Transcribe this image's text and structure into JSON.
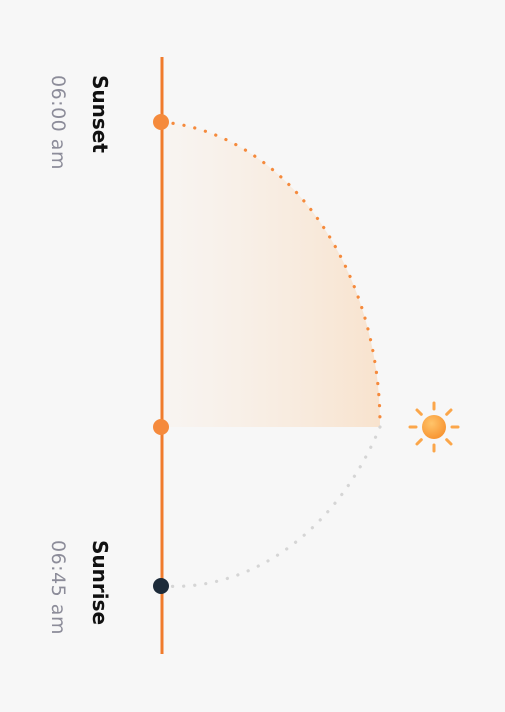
{
  "sunset": {
    "label": "Sunset",
    "time": "06:00 am"
  },
  "sunrise": {
    "label": "Sunrise",
    "time": "06:45 am"
  },
  "colors": {
    "accent": "#f58a3c",
    "track": "#f07b2c",
    "sun": "#fba64a",
    "sunrise_marker": "#1d2b3a",
    "remaining_path": "#d5d5d5",
    "background": "#f7f7f7"
  },
  "icons": {
    "sun": "sun-icon"
  }
}
